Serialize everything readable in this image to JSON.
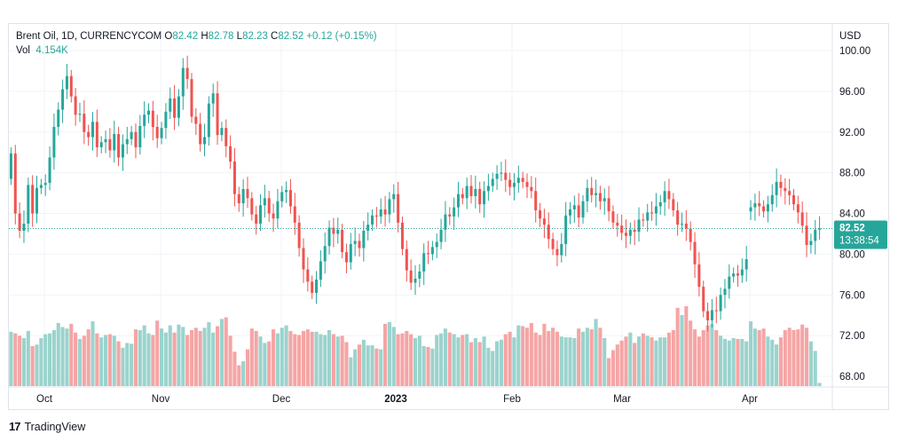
{
  "legend": {
    "symbol": "Brent Oil, 1D, CURRENCYCOM",
    "open_label": "O",
    "open": "82.42",
    "high_label": "H",
    "high": "82.78",
    "low_label": "L",
    "low": "82.23",
    "close_label": "C",
    "close": "82.52",
    "change": "+0.12 (+0.15%)",
    "vol_label": "Vol",
    "vol": "4.154K"
  },
  "price_scale": {
    "currency": "USD",
    "last_price": "82.52",
    "countdown": "13:38:54"
  },
  "footer": {
    "brand": "TradingView"
  },
  "colors": {
    "up": "#26a69a",
    "down": "#ef5350",
    "up_vol": "#9bd3cd",
    "down_vol": "#f5a5a5",
    "last_line": "#26a69a"
  },
  "chart_data": {
    "type": "candlestick",
    "title": "Brent Oil, 1D, CURRENCYCOM",
    "ylabel": "USD",
    "ylim": [
      66.5,
      101
    ],
    "y_ticks": [
      "100.00",
      "96.00",
      "92.00",
      "88.00",
      "84.00",
      "80.00",
      "76.00",
      "72.00",
      "68.00"
    ],
    "x_ticks": [
      "Oct",
      "Nov",
      "Dec",
      "2023",
      "Feb",
      "Mar",
      "Apr"
    ],
    "grid": true,
    "last_price_line": 82.52,
    "closes": [
      89.9,
      84.0,
      82.3,
      83.0,
      86.8,
      84.0,
      86.5,
      86.8,
      87.0,
      89.5,
      92.5,
      94.2,
      96.2,
      97.5,
      95.5,
      93.7,
      93.8,
      92.0,
      91.5,
      93.0,
      90.5,
      91.0,
      91.3,
      90.2,
      91.8,
      89.5,
      90.8,
      91.3,
      92.0,
      90.5,
      92.6,
      93.7,
      94.1,
      92.5,
      91.4,
      92.4,
      94.0,
      95.3,
      93.4,
      95.5,
      98.3,
      97.2,
      93.5,
      92.8,
      90.8,
      91.5,
      94.8,
      95.8,
      91.7,
      92.4,
      90.6,
      89.1,
      85.9,
      85.0,
      86.4,
      85.5,
      83.9,
      83.0,
      84.8,
      85.5,
      84.0,
      83.5,
      85.2,
      86.1,
      86.3,
      84.7,
      83.1,
      80.6,
      78.5,
      77.3,
      76.2,
      77.5,
      79.3,
      80.8,
      82.6,
      82.0,
      82.4,
      80.2,
      79.2,
      81.0,
      81.3,
      80.6,
      82.3,
      82.9,
      83.8,
      83.7,
      84.4,
      83.9,
      85.4,
      85.9,
      83.1,
      80.5,
      78.4,
      77.2,
      77.6,
      78.3,
      80.1,
      80.0,
      80.7,
      81.2,
      82.4,
      83.9,
      83.7,
      84.6,
      85.9,
      85.5,
      86.7,
      85.7,
      86.4,
      84.9,
      86.2,
      86.7,
      87.4,
      87.9,
      88.0,
      87.3,
      86.6,
      87.0,
      87.5,
      87.1,
      86.6,
      86.2,
      84.3,
      83.5,
      82.9,
      81.5,
      80.5,
      79.9,
      81.0,
      83.8,
      84.4,
      84.8,
      83.6,
      85.2,
      86.5,
      85.8,
      86.0,
      85.2,
      85.5,
      84.2,
      83.1,
      82.8,
      82.1,
      81.8,
      82.4,
      82.2,
      83.4,
      83.3,
      84.1,
      84.0,
      84.7,
      85.1,
      86.2,
      85.4,
      84.3,
      82.9,
      83.0,
      82.5,
      81.2,
      79.0,
      76.8,
      74.4,
      73.5,
      74.5,
      74.4,
      76.0,
      76.6,
      77.8,
      78.1,
      77.9,
      78.5,
      79.5
    ],
    "gap_after_index": 175,
    "closes_after_gap": [
      84.6,
      85.0,
      84.7,
      84.2,
      84.9,
      85.8,
      87.1,
      86.5,
      86.2,
      85.8,
      84.9,
      84.1,
      82.8,
      80.9,
      81.3,
      82.4,
      82.52
    ],
    "volume_relative": [
      0.68,
      0.66,
      0.63,
      0.6,
      0.69,
      0.5,
      0.52,
      0.6,
      0.65,
      0.66,
      0.7,
      0.79,
      0.74,
      0.72,
      0.78,
      0.67,
      0.59,
      0.63,
      0.71,
      0.81,
      0.66,
      0.61,
      0.64,
      0.65,
      0.63,
      0.56,
      0.48,
      0.54,
      0.53,
      0.71,
      0.7,
      0.76,
      0.66,
      0.64,
      0.82,
      0.72,
      0.67,
      0.76,
      0.67,
      0.77,
      0.74,
      0.64,
      0.7,
      0.73,
      0.69,
      0.73,
      0.8,
      0.67,
      0.75,
      0.84,
      0.86,
      0.63,
      0.43,
      0.26,
      0.31,
      0.46,
      0.72,
      0.69,
      0.62,
      0.54,
      0.56,
      0.71,
      0.66,
      0.73,
      0.76,
      0.69,
      0.65,
      0.64,
      0.69,
      0.71,
      0.68,
      0.68,
      0.65,
      0.64,
      0.7,
      0.65,
      0.62,
      0.63,
      0.55,
      0.36,
      0.46,
      0.52,
      0.58,
      0.51,
      0.51,
      0.47,
      0.46,
      0.78,
      0.8,
      0.74,
      0.65,
      0.66,
      0.69,
      0.65,
      0.6,
      0.63,
      0.5,
      0.49,
      0.47,
      0.64,
      0.66,
      0.72,
      0.67,
      0.65,
      0.61,
      0.64,
      0.65,
      0.55,
      0.6,
      0.55,
      0.62,
      0.48,
      0.44,
      0.56,
      0.58,
      0.65,
      0.68,
      0.61,
      0.76,
      0.75,
      0.73,
      0.79,
      0.67,
      0.64,
      0.78,
      0.69,
      0.73,
      0.68,
      0.62,
      0.61,
      0.61,
      0.6,
      0.72,
      0.68,
      0.73,
      0.71,
      0.84,
      0.73,
      0.6,
      0.35,
      0.45,
      0.52,
      0.57,
      0.62,
      0.67,
      0.54,
      0.62,
      0.66,
      0.63,
      0.61,
      0.57,
      0.61,
      0.61,
      0.67,
      0.7,
      0.98,
      0.89,
      1.0,
      0.82,
      0.71,
      0.62,
      0.7,
      0.76,
      0.78,
      0.7,
      0.63,
      0.59,
      0.57,
      0.6,
      0.59,
      0.59,
      0.56,
      0.81,
      0.72,
      0.7,
      0.72,
      0.62,
      0.58,
      0.52,
      0.61,
      0.7,
      0.73,
      0.7,
      0.71,
      0.77,
      0.73,
      0.56,
      0.44,
      0.04
    ]
  }
}
